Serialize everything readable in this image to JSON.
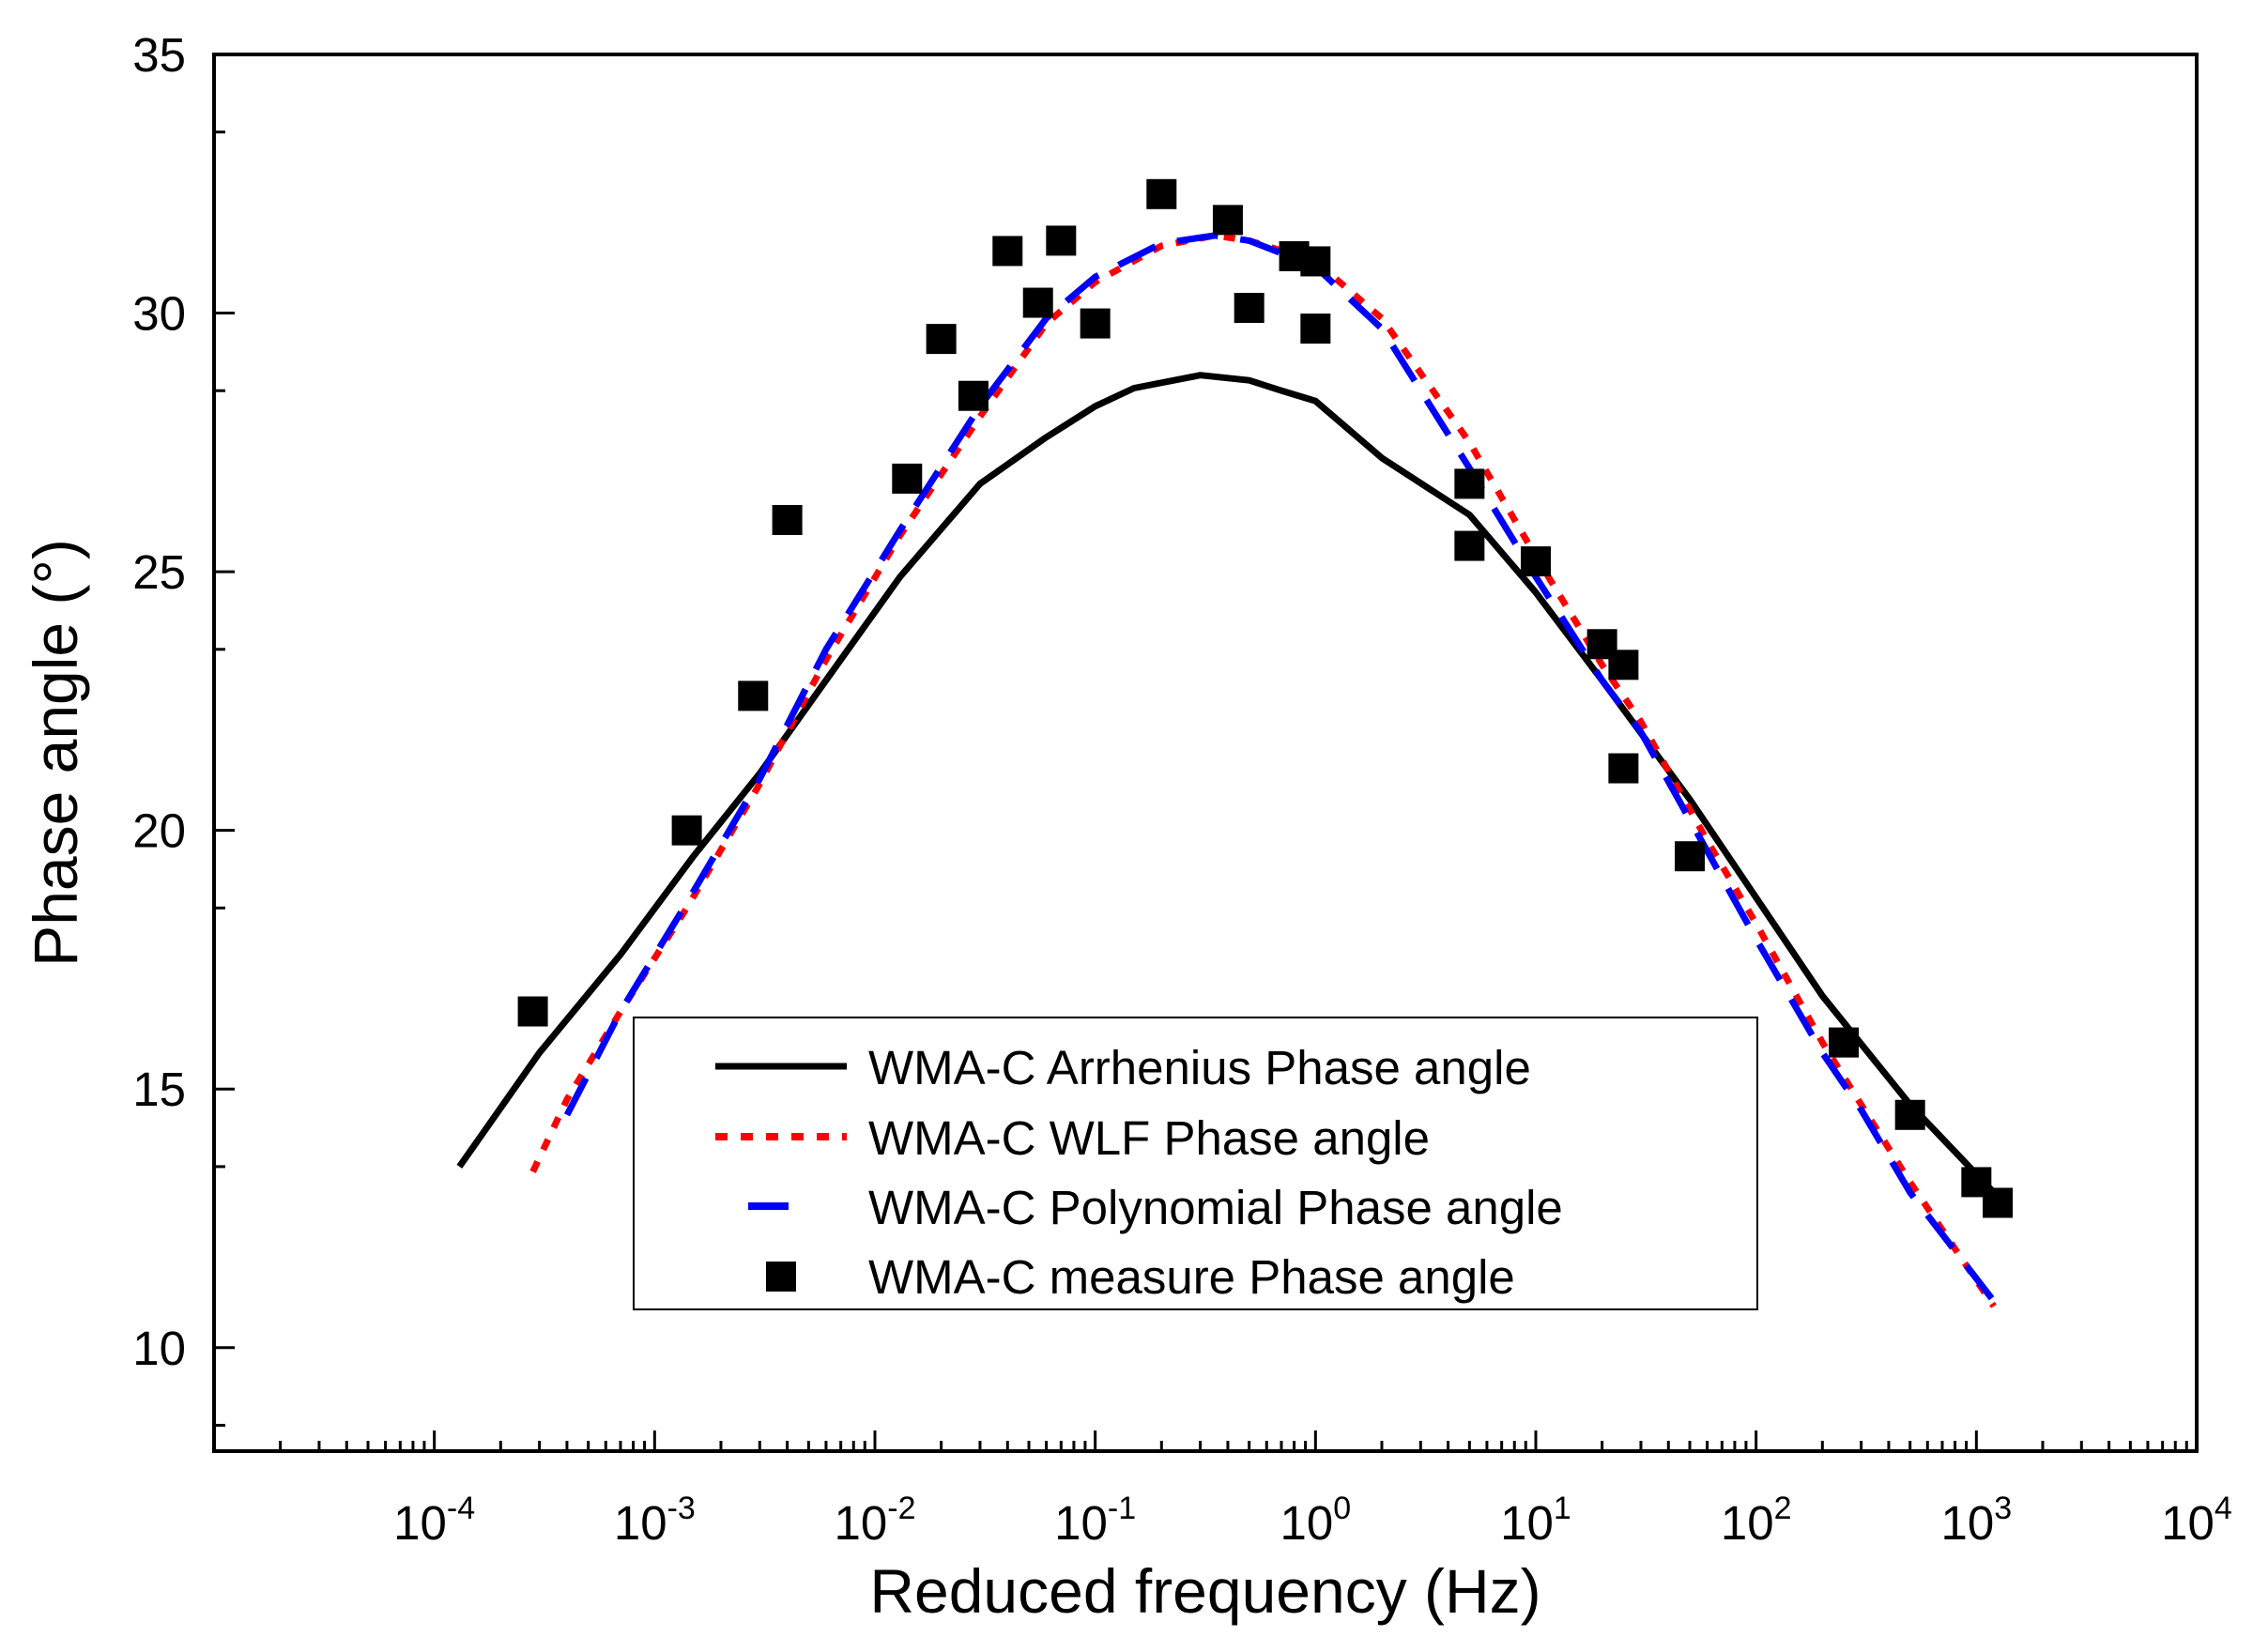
{
  "chart_data": {
    "type": "scatter",
    "xlabel": "Reduced frequency (Hz)",
    "ylabel": "Phase angle (°)",
    "xscale": "log",
    "xlim": [
      1e-05,
      10000
    ],
    "ylim": [
      8,
      35
    ],
    "x_ticks": [
      {
        "value": 0.0001,
        "base": "10",
        "exp": "-4"
      },
      {
        "value": 0.001,
        "base": "10",
        "exp": "-3"
      },
      {
        "value": 0.01,
        "base": "10",
        "exp": "-2"
      },
      {
        "value": 0.1,
        "base": "10",
        "exp": "-1"
      },
      {
        "value": 1,
        "base": "10",
        "exp": "0"
      },
      {
        "value": 10,
        "base": "10",
        "exp": "1"
      },
      {
        "value": 100,
        "base": "10",
        "exp": "2"
      },
      {
        "value": 1000,
        "base": "10",
        "exp": "3"
      },
      {
        "value": 10000,
        "base": "10",
        "exp": "4"
      }
    ],
    "y_ticks": [
      {
        "value": 10,
        "label": "10"
      },
      {
        "value": 15,
        "label": "15"
      },
      {
        "value": 20,
        "label": "20"
      },
      {
        "value": 25,
        "label": "25"
      },
      {
        "value": 30,
        "label": "30"
      },
      {
        "value": 35,
        "label": "35"
      }
    ],
    "grid": false,
    "legend_position": "bottom-center",
    "series": [
      {
        "name": "WMA-C Arrhenius Phase angle",
        "kind": "line",
        "style": "solid",
        "color": "#000000",
        "x": [
          0.00013,
          0.0003,
          0.0007,
          0.0015,
          0.003,
          0.006,
          0.013,
          0.03,
          0.06,
          0.1,
          0.15,
          0.3,
          0.5,
          0.7,
          1.0,
          2.0,
          5.0,
          10,
          20,
          50,
          100,
          200,
          500,
          1200
        ],
        "y": [
          13.5,
          15.7,
          17.6,
          19.5,
          21.1,
          22.9,
          24.9,
          26.7,
          27.6,
          28.2,
          28.55,
          28.8,
          28.7,
          28.5,
          28.3,
          27.2,
          26.1,
          24.6,
          22.9,
          20.6,
          18.7,
          16.8,
          14.7,
          13.0
        ]
      },
      {
        "name": "WMA-C WLF Phase angle",
        "kind": "line",
        "style": "dotted",
        "color": "#ff0000",
        "x": [
          0.00028,
          0.0004,
          0.0007,
          0.0014,
          0.003,
          0.006,
          0.013,
          0.03,
          0.06,
          0.1,
          0.2,
          0.35,
          0.5,
          1.0,
          2.0,
          5.0,
          10,
          20,
          30,
          60,
          100,
          200,
          300,
          500,
          1200
        ],
        "y": [
          13.4,
          14.8,
          16.5,
          18.5,
          20.9,
          23.3,
          25.7,
          28.0,
          29.8,
          30.6,
          31.3,
          31.5,
          31.4,
          31.0,
          29.9,
          27.5,
          25.3,
          23.2,
          22.1,
          19.8,
          18.2,
          15.9,
          14.7,
          13.2,
          10.8
        ]
      },
      {
        "name": "WMA-C Polynomial Phase angle",
        "kind": "line",
        "style": "dashed",
        "color": "#0000ff",
        "x": [
          0.0004,
          0.0007,
          0.0014,
          0.003,
          0.006,
          0.013,
          0.03,
          0.06,
          0.1,
          0.2,
          0.35,
          0.5,
          1.0,
          2.0,
          5.0,
          10,
          20,
          30,
          60,
          100,
          200,
          300,
          500,
          1200
        ],
        "y": [
          14.5,
          16.5,
          18.6,
          21.0,
          23.5,
          25.8,
          28.2,
          29.9,
          30.7,
          31.35,
          31.5,
          31.4,
          30.9,
          29.7,
          27.0,
          24.9,
          22.9,
          21.9,
          19.6,
          17.9,
          15.7,
          14.6,
          13.0,
          10.9
        ]
      },
      {
        "name": "WMA-C measure Phase angle",
        "kind": "scatter",
        "marker": "square",
        "color": "#000000",
        "x": [
          0.00028,
          0.0014,
          0.0028,
          0.004,
          0.014,
          0.02,
          0.028,
          0.04,
          0.055,
          0.07,
          0.1,
          0.2,
          0.4,
          0.5,
          0.8,
          1.0,
          1.0,
          5.0,
          5.0,
          10,
          20,
          25,
          25,
          50,
          250,
          500,
          1000,
          1250
        ],
        "y": [
          16.5,
          20.0,
          22.6,
          26.0,
          26.8,
          29.5,
          28.4,
          31.2,
          30.2,
          31.4,
          29.8,
          32.3,
          31.8,
          30.1,
          31.1,
          31.0,
          29.7,
          26.7,
          25.5,
          25.2,
          23.6,
          23.2,
          21.2,
          19.5,
          15.9,
          14.5,
          13.2,
          12.8
        ]
      }
    ]
  }
}
